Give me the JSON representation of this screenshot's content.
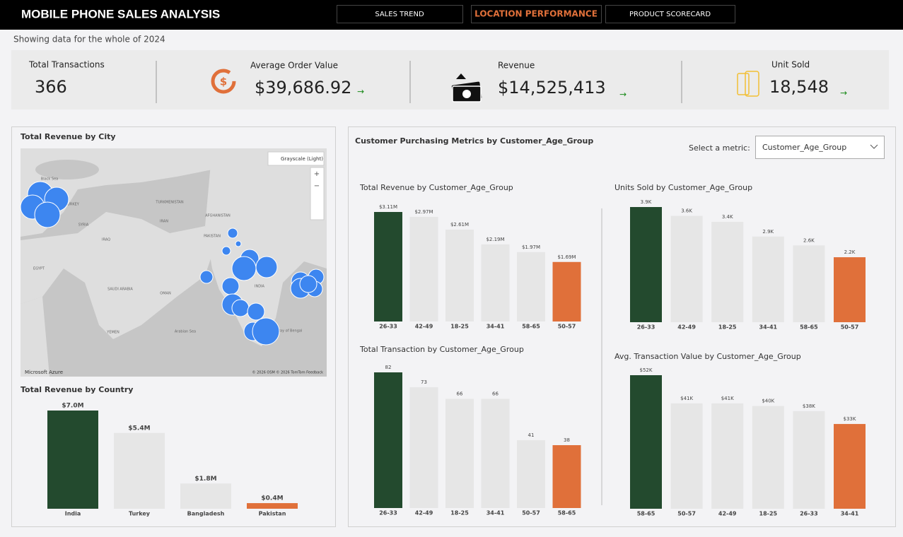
{
  "header": {
    "title": "MOBILE PHONE SALES ANALYSIS",
    "nav": [
      "SALES TREND",
      "LOCATION PERFORMANCE",
      "PRODUCT SCORECARD"
    ],
    "active_nav": 1
  },
  "subtitle": "Showing data for the whole of 2024",
  "kpis": [
    {
      "label": "Total Transactions",
      "value": "366"
    },
    {
      "label": "Average Order Value",
      "value": "$39,686.92"
    },
    {
      "label": "Revenue",
      "value": "$14,525,413"
    },
    {
      "label": "Unit Sold",
      "value": "18,548"
    }
  ],
  "map": {
    "title": "Total Revenue by City",
    "style_button": "Grayscale (Light)",
    "brand": "Microsoft Azure",
    "credits": "© 2026 OSM © 2026 TomTom Feedback",
    "labels": [
      "Black Sea",
      "TURKEY",
      "SYRIA",
      "IRAQ",
      "IRAN",
      "TURKMENISTAN",
      "AFGHANISTAN",
      "PAKISTAN",
      "INDIA",
      "EGYPT",
      "SAUDI ARABIA",
      "OMAN",
      "YEMEN",
      "Arabian Sea",
      "Bay of Bengal"
    ]
  },
  "metrics_panel": {
    "title": "Customer Purchasing Metrics by Customer_Age_Group",
    "select_label": "Select a metric:",
    "selected": "Customer_Age_Group"
  },
  "chart_data": [
    {
      "type": "bar",
      "title": "Total Revenue by Country",
      "categories": [
        "India",
        "Turkey",
        "Bangladesh",
        "Pakistan"
      ],
      "values": [
        7.0,
        5.4,
        1.8,
        0.4
      ],
      "value_labels": [
        "$7.0M",
        "$5.4M",
        "$1.8M",
        "$0.4M"
      ],
      "colors": [
        "#234a2e",
        "#e6e6e6",
        "#e6e6e6",
        "#e0703a"
      ]
    },
    {
      "type": "bar",
      "title": "Total Revenue by Customer_Age_Group",
      "categories": [
        "26-33",
        "42-49",
        "18-25",
        "34-41",
        "58-65",
        "50-57"
      ],
      "values": [
        3.11,
        2.97,
        2.61,
        2.19,
        1.97,
        1.69
      ],
      "value_labels": [
        "$3.11M",
        "$2.97M",
        "$2.61M",
        "$2.19M",
        "$1.97M",
        "$1.69M"
      ],
      "colors": [
        "#234a2e",
        "#e6e6e6",
        "#e6e6e6",
        "#e6e6e6",
        "#e6e6e6",
        "#e0703a"
      ]
    },
    {
      "type": "bar",
      "title": "Units Sold by Customer_Age_Group",
      "categories": [
        "26-33",
        "42-49",
        "18-25",
        "34-41",
        "58-65",
        "50-57"
      ],
      "values": [
        3.9,
        3.6,
        3.4,
        2.9,
        2.6,
        2.2
      ],
      "value_labels": [
        "3.9K",
        "3.6K",
        "3.4K",
        "2.9K",
        "2.6K",
        "2.2K"
      ],
      "colors": [
        "#234a2e",
        "#e6e6e6",
        "#e6e6e6",
        "#e6e6e6",
        "#e6e6e6",
        "#e0703a"
      ]
    },
    {
      "type": "bar",
      "title": "Total Transaction by Customer_Age_Group",
      "categories": [
        "26-33",
        "42-49",
        "18-25",
        "34-41",
        "50-57",
        "58-65"
      ],
      "values": [
        82,
        73,
        66,
        66,
        41,
        38
      ],
      "colors": [
        "#234a2e",
        "#e6e6e6",
        "#e6e6e6",
        "#e6e6e6",
        "#e6e6e6",
        "#e0703a"
      ]
    },
    {
      "type": "bar",
      "title": "Avg. Transaction Value by Customer_Age_Group",
      "categories": [
        "58-65",
        "50-57",
        "42-49",
        "18-25",
        "26-33",
        "34-41"
      ],
      "values": [
        52,
        41,
        41,
        40,
        38,
        33
      ],
      "value_labels": [
        "$52K",
        "$41K",
        "$41K",
        "$40K",
        "$38K",
        "$33K"
      ],
      "colors": [
        "#234a2e",
        "#e6e6e6",
        "#e6e6e6",
        "#e6e6e6",
        "#e6e6e6",
        "#e0703a"
      ]
    }
  ]
}
